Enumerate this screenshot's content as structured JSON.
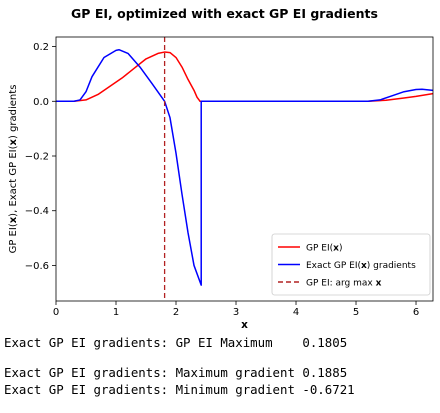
{
  "chart_data": {
    "type": "line",
    "title": "GP EI, optimized with exact GP EI gradients",
    "xlabel": "x",
    "ylabel_parts": [
      "GP EI(",
      "x",
      "), Exact GP EI(",
      "x",
      ") gradients"
    ],
    "xlim": [
      0,
      6.283
    ],
    "ylim": [
      -0.73,
      0.235
    ],
    "x_ticks": [
      0,
      1,
      2,
      3,
      4,
      5,
      6
    ],
    "x_tick_labels": [
      "0",
      "1",
      "2",
      "3",
      "4",
      "5",
      "6"
    ],
    "y_ticks": [
      0.2,
      0.0,
      -0.2,
      -0.4,
      -0.6
    ],
    "y_tick_labels": [
      "0.2",
      "0.0",
      "−0.2",
      "−0.4",
      "−0.6"
    ],
    "grid": false,
    "legend_position": "lower-right",
    "series": [
      {
        "name_parts": [
          "GP EI(",
          "x",
          ")"
        ],
        "color": "#ff0000",
        "style": "solid",
        "x": [
          0,
          0.3,
          0.5,
          0.7,
          0.9,
          1.1,
          1.3,
          1.5,
          1.7,
          1.81,
          1.9,
          2.0,
          2.1,
          2.2,
          2.3,
          2.35,
          2.39,
          2.4,
          5.2,
          5.5,
          5.8,
          6.0,
          6.283
        ],
        "y": [
          0,
          0,
          0.005,
          0.025,
          0.055,
          0.085,
          0.12,
          0.155,
          0.175,
          0.18,
          0.178,
          0.16,
          0.125,
          0.08,
          0.04,
          0.015,
          0.003,
          0,
          0,
          0.004,
          0.012,
          0.018,
          0.028
        ]
      },
      {
        "name_parts": [
          "Exact GP EI(",
          "x",
          ") gradients"
        ],
        "color": "#0000ff",
        "style": "solid",
        "x": [
          0,
          0.3,
          0.4,
          0.5,
          0.6,
          0.8,
          1.0,
          1.05,
          1.2,
          1.4,
          1.6,
          1.81,
          1.9,
          2.0,
          2.1,
          2.2,
          2.3,
          2.42,
          2.42,
          2.44,
          5.2,
          5.4,
          5.6,
          5.8,
          6.0,
          6.1,
          6.283
        ],
        "y": [
          0,
          0,
          0.005,
          0.035,
          0.09,
          0.16,
          0.186,
          0.1885,
          0.175,
          0.125,
          0.065,
          0,
          -0.06,
          -0.19,
          -0.34,
          -0.48,
          -0.6,
          -0.6721,
          0.0,
          0.0,
          0.0,
          0.005,
          0.02,
          0.035,
          0.043,
          0.044,
          0.04
        ]
      }
    ],
    "vline": {
      "name_parts": [
        "GP EI: arg max ",
        "x"
      ],
      "x": 1.81,
      "color": "#b22222",
      "style": "dashed"
    }
  },
  "output": {
    "maximum_line": "Exact GP EI gradients: GP EI Maximum    0.1805",
    "max_gradient_line": "Exact GP EI gradients: Maximum gradient 0.1885",
    "min_gradient_line": "Exact GP EI gradients: Minimum gradient -0.6721"
  }
}
